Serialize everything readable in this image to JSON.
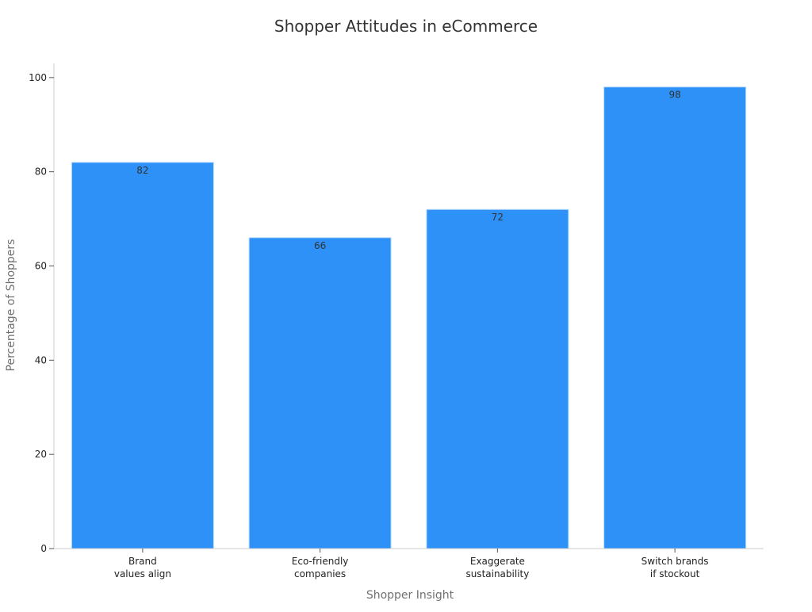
{
  "chart_data": {
    "type": "bar",
    "title": "Shopper Attitudes in eCommerce",
    "xlabel": "Shopper Insight",
    "ylabel": "Percentage of Shoppers",
    "categories": [
      [
        "Brand",
        "values align"
      ],
      [
        "Eco-friendly",
        "companies"
      ],
      [
        "Exaggerate",
        "sustainability"
      ],
      [
        "Switch brands",
        "if stockout"
      ]
    ],
    "values": [
      82,
      66,
      72,
      98
    ],
    "data_labels": [
      "82",
      "66",
      "72",
      "98"
    ],
    "ylim": [
      0,
      103
    ],
    "yticks": [
      0,
      20,
      40,
      60,
      80,
      100
    ],
    "grid": false,
    "legend": "none",
    "colors": {
      "bar": "#2e91f8",
      "bar_edge": "#b8dcff",
      "axis": "#cccccc",
      "title": "#333333",
      "axis_label": "#707070"
    }
  }
}
